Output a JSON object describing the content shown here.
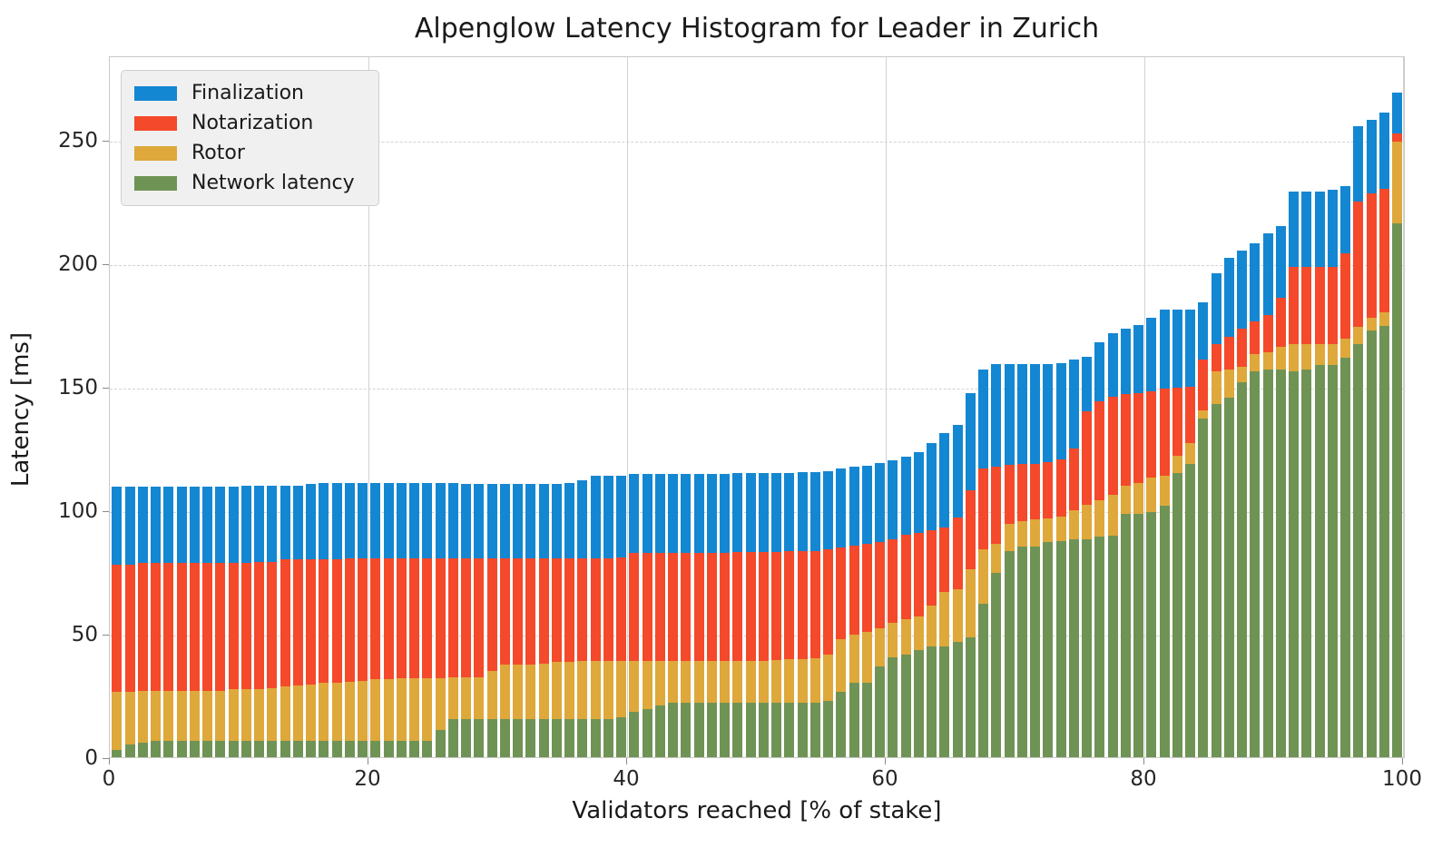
{
  "chart_data": {
    "type": "bar",
    "stacked": true,
    "title": "Alpenglow Latency Histogram for Leader in Zurich",
    "xlabel": "Validators reached [% of stake]",
    "ylabel": "Latency [ms]",
    "xticks": [
      0,
      20,
      40,
      60,
      80,
      100
    ],
    "yticks": [
      0,
      50,
      100,
      150,
      200,
      250
    ],
    "ylim": [
      0,
      284
    ],
    "xlim": [
      0,
      100
    ],
    "grid": {
      "vertical": "solid",
      "horizontal": "dashed"
    },
    "legend_position": "upper-left",
    "series": [
      {
        "key": "finalization",
        "name": "Finalization",
        "color": "#1487d2"
      },
      {
        "key": "notarization",
        "name": "Notarization",
        "color": "#f4492b"
      },
      {
        "key": "rotor",
        "name": "Rotor",
        "color": "#dfa83a"
      },
      {
        "key": "network",
        "name": "Network latency",
        "color": "#6f9355"
      }
    ],
    "stack_order_bottom_to_top": [
      "network",
      "rotor",
      "notarization",
      "finalization"
    ],
    "x_unit": "percent_of_stake",
    "x_values": [
      1,
      2,
      3,
      4,
      5,
      6,
      7,
      8,
      9,
      10,
      11,
      12,
      13,
      14,
      15,
      16,
      17,
      18,
      19,
      20,
      21,
      22,
      23,
      24,
      25,
      26,
      27,
      28,
      29,
      30,
      31,
      32,
      33,
      34,
      35,
      36,
      37,
      38,
      39,
      40,
      41,
      42,
      43,
      44,
      45,
      46,
      47,
      48,
      49,
      50,
      51,
      52,
      53,
      54,
      55,
      56,
      57,
      58,
      59,
      60,
      61,
      62,
      63,
      64,
      65,
      66,
      67,
      68,
      69,
      70,
      71,
      72,
      73,
      74,
      75,
      76,
      77,
      78,
      79,
      80,
      81,
      82,
      83,
      84,
      85,
      86,
      87,
      88,
      89,
      90,
      91,
      92,
      93,
      94,
      95,
      96,
      97,
      98,
      99,
      100
    ],
    "bars_cumulative_order": [
      "network",
      "rotor",
      "notarization",
      "finalization"
    ],
    "bars_cumulative_ms": [
      [
        3.0,
        26.5,
        78.0,
        109.5
      ],
      [
        5.0,
        26.5,
        78.0,
        109.5
      ],
      [
        6.0,
        27.0,
        78.5,
        109.5
      ],
      [
        6.5,
        27.0,
        78.5,
        109.5
      ],
      [
        6.5,
        27.0,
        78.5,
        109.5
      ],
      [
        6.5,
        27.0,
        78.5,
        109.5
      ],
      [
        6.5,
        27.0,
        78.5,
        109.5
      ],
      [
        6.5,
        27.0,
        78.5,
        109.5
      ],
      [
        6.5,
        27.0,
        78.5,
        109.5
      ],
      [
        6.5,
        27.5,
        78.5,
        109.5
      ],
      [
        6.5,
        27.5,
        78.5,
        110.0
      ],
      [
        6.5,
        27.5,
        79.0,
        110.0
      ],
      [
        6.5,
        28.0,
        79.0,
        110.0
      ],
      [
        6.5,
        28.5,
        80.0,
        110.0
      ],
      [
        6.5,
        29.0,
        80.0,
        110.0
      ],
      [
        6.5,
        29.5,
        80.0,
        110.5
      ],
      [
        6.5,
        30.0,
        80.0,
        111.0
      ],
      [
        6.5,
        30.0,
        80.0,
        111.0
      ],
      [
        6.5,
        30.5,
        80.5,
        111.0
      ],
      [
        6.5,
        31.0,
        80.5,
        111.0
      ],
      [
        6.5,
        31.5,
        80.5,
        111.0
      ],
      [
        6.5,
        31.5,
        80.5,
        111.0
      ],
      [
        6.5,
        32.0,
        80.5,
        111.0
      ],
      [
        6.5,
        32.0,
        80.5,
        111.0
      ],
      [
        6.5,
        32.0,
        80.5,
        111.0
      ],
      [
        11.0,
        32.0,
        80.5,
        111.0
      ],
      [
        15.5,
        32.3,
        80.5,
        111.0
      ],
      [
        15.5,
        32.3,
        80.5,
        110.5
      ],
      [
        15.5,
        32.5,
        80.5,
        110.5
      ],
      [
        15.5,
        35.0,
        80.5,
        110.5
      ],
      [
        15.5,
        37.5,
        80.5,
        110.5
      ],
      [
        15.5,
        37.5,
        80.5,
        110.5
      ],
      [
        15.5,
        37.5,
        80.5,
        110.5
      ],
      [
        15.5,
        38.0,
        80.5,
        110.5
      ],
      [
        15.5,
        38.5,
        80.5,
        110.5
      ],
      [
        15.5,
        38.6,
        80.5,
        111.0
      ],
      [
        15.5,
        38.8,
        80.5,
        112.0
      ],
      [
        15.5,
        39.0,
        80.5,
        114.0
      ],
      [
        15.5,
        39.0,
        80.5,
        114.0
      ],
      [
        16.0,
        39.0,
        81.0,
        114.0
      ],
      [
        18.5,
        39.0,
        82.5,
        114.5
      ],
      [
        19.5,
        39.0,
        82.7,
        114.5
      ],
      [
        21.0,
        39.0,
        82.7,
        114.7
      ],
      [
        22.0,
        39.0,
        82.7,
        114.7
      ],
      [
        22.0,
        39.0,
        82.7,
        114.7
      ],
      [
        22.0,
        39.0,
        82.7,
        114.7
      ],
      [
        22.0,
        39.0,
        82.7,
        114.7
      ],
      [
        22.0,
        39.0,
        82.7,
        114.7
      ],
      [
        22.0,
        39.0,
        83.0,
        115.0
      ],
      [
        22.0,
        39.0,
        83.0,
        115.0
      ],
      [
        22.0,
        39.0,
        83.0,
        115.0
      ],
      [
        22.0,
        39.3,
        83.0,
        115.0
      ],
      [
        22.0,
        39.5,
        83.3,
        115.0
      ],
      [
        22.0,
        39.5,
        83.3,
        115.3
      ],
      [
        22.0,
        40.0,
        83.5,
        115.5
      ],
      [
        22.8,
        41.5,
        84.0,
        115.8
      ],
      [
        26.5,
        47.8,
        85.0,
        117.0
      ],
      [
        30.0,
        49.6,
        85.7,
        117.5
      ],
      [
        30.0,
        50.7,
        86.4,
        118.0
      ],
      [
        36.8,
        52.2,
        87.0,
        119.0
      ],
      [
        40.4,
        54.4,
        88.2,
        120.0
      ],
      [
        41.5,
        55.9,
        90.0,
        121.5
      ],
      [
        43.4,
        57.0,
        90.8,
        123.5
      ],
      [
        44.9,
        61.4,
        91.9,
        127.0
      ],
      [
        44.9,
        66.9,
        93.0,
        131.0
      ],
      [
        46.7,
        68.0,
        97.0,
        134.5
      ],
      [
        48.5,
        76.0,
        108.0,
        147.5
      ],
      [
        62.0,
        84.0,
        117.0,
        157.0
      ],
      [
        74.6,
        86.4,
        117.6,
        159.0
      ],
      [
        83.5,
        94.5,
        118.4,
        159.2
      ],
      [
        85.3,
        95.6,
        118.8,
        159.2
      ],
      [
        85.3,
        96.3,
        118.8,
        159.2
      ],
      [
        87.1,
        96.7,
        119.5,
        159.2
      ],
      [
        87.5,
        97.4,
        120.6,
        159.6
      ],
      [
        88.2,
        100.0,
        125.0,
        161.0
      ],
      [
        88.2,
        102.0,
        140.0,
        162.0
      ],
      [
        89.3,
        104.0,
        144.0,
        168.0
      ],
      [
        89.5,
        106.0,
        146.0,
        171.5
      ],
      [
        98.6,
        110.0,
        147.0,
        173.5
      ],
      [
        98.6,
        111.0,
        147.5,
        175.0
      ],
      [
        99.3,
        113.0,
        148.0,
        178.0
      ],
      [
        101.8,
        114.0,
        149.0,
        181.0
      ],
      [
        115.0,
        122.0,
        149.5,
        181.0
      ],
      [
        118.8,
        127.0,
        150.0,
        181.0
      ],
      [
        137.0,
        140.5,
        161.0,
        184.0
      ],
      [
        143.0,
        156.0,
        167.0,
        196.0
      ],
      [
        145.5,
        157.0,
        170.0,
        202.0
      ],
      [
        151.8,
        158.0,
        173.5,
        205.0
      ],
      [
        156.3,
        163.0,
        176.5,
        208.0
      ],
      [
        157.0,
        164.0,
        179.0,
        212.0
      ],
      [
        157.0,
        166.0,
        186.0,
        215.0
      ],
      [
        156.3,
        167.0,
        198.5,
        229.0
      ],
      [
        157.0,
        167.3,
        198.5,
        229.0
      ],
      [
        158.8,
        167.3,
        198.5,
        229.0
      ],
      [
        158.8,
        167.3,
        198.5,
        229.5
      ],
      [
        161.8,
        169.4,
        204.0,
        231.0
      ],
      [
        167.3,
        174.0,
        225.0,
        255.5
      ],
      [
        172.8,
        177.7,
        228.0,
        258.0
      ],
      [
        174.5,
        180.0,
        230.0,
        261.0
      ],
      [
        216.0,
        249.0,
        252.5,
        269.0
      ]
    ]
  }
}
